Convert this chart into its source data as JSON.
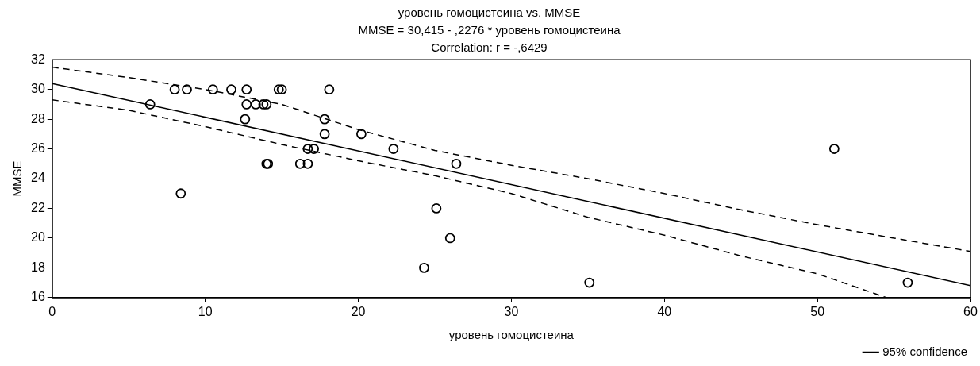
{
  "chart_data": {
    "type": "scatter",
    "title": "уровень гомоцистеина vs. MMSE",
    "subtitle": "MMSE = 30,415 - ,2276 * уровень гомоцистеина",
    "annotations": [
      "Correlation: r = -,6429"
    ],
    "xlabel": "уровень гомоцистеина",
    "ylabel": "MMSE",
    "xlim": [
      0,
      60
    ],
    "xticks": [
      0,
      10,
      20,
      30,
      40,
      50,
      60
    ],
    "ylim": [
      16,
      32
    ],
    "yticks": [
      16,
      18,
      20,
      22,
      24,
      26,
      28,
      30,
      32
    ],
    "grid": false,
    "legend": "bottom right",
    "marker": "circle",
    "series": [
      {
        "color": "#000000",
        "x": [
          6.4,
          8.0,
          8.8,
          10.5,
          11.7,
          12.7,
          12.7,
          12.6,
          13.3,
          13.8,
          14.0,
          14.8,
          15.0,
          18.1,
          17.8,
          17.8,
          20.2,
          16.2,
          16.7,
          17.1,
          16.7,
          14.0,
          14.1,
          22.3,
          26.4,
          25.1,
          26.0,
          24.3,
          35.1,
          51.1,
          55.9,
          8.4
        ],
        "values": [
          29,
          30,
          30,
          30,
          30,
          30,
          29,
          28,
          29,
          29,
          29,
          30,
          30,
          30,
          28,
          27,
          27,
          25,
          26,
          26,
          25,
          25,
          25,
          26,
          25,
          22,
          20,
          18,
          17,
          26,
          17,
          23
        ]
      },
      {
        "type": "line",
        "color": "#000000",
        "line_style": "solid",
        "marker": "none",
        "x": [
          0,
          60
        ],
        "values": [
          30.4,
          16.8
        ]
      },
      {
        "type": "line",
        "name": "95% confidence",
        "color": "#000000",
        "line_style": "dashed",
        "marker": "none",
        "x": [
          0,
          5,
          10,
          15,
          20,
          25,
          30,
          35,
          40,
          45,
          50,
          55,
          60
        ],
        "values": [
          31.5,
          30.8,
          30.0,
          29.0,
          27.3,
          25.9,
          24.9,
          24.0,
          23.0,
          21.9,
          20.9,
          20.0,
          19.1
        ]
      },
      {
        "type": "line",
        "color": "#000000",
        "line_style": "dashed",
        "marker": "none",
        "x": [
          0,
          5,
          10,
          15,
          20,
          25,
          30,
          35,
          40,
          45,
          50,
          54.5
        ],
        "values": [
          29.3,
          28.6,
          27.5,
          26.3,
          25.2,
          24.2,
          23.0,
          21.4,
          20.2,
          18.8,
          17.6,
          16.0
        ]
      }
    ]
  }
}
